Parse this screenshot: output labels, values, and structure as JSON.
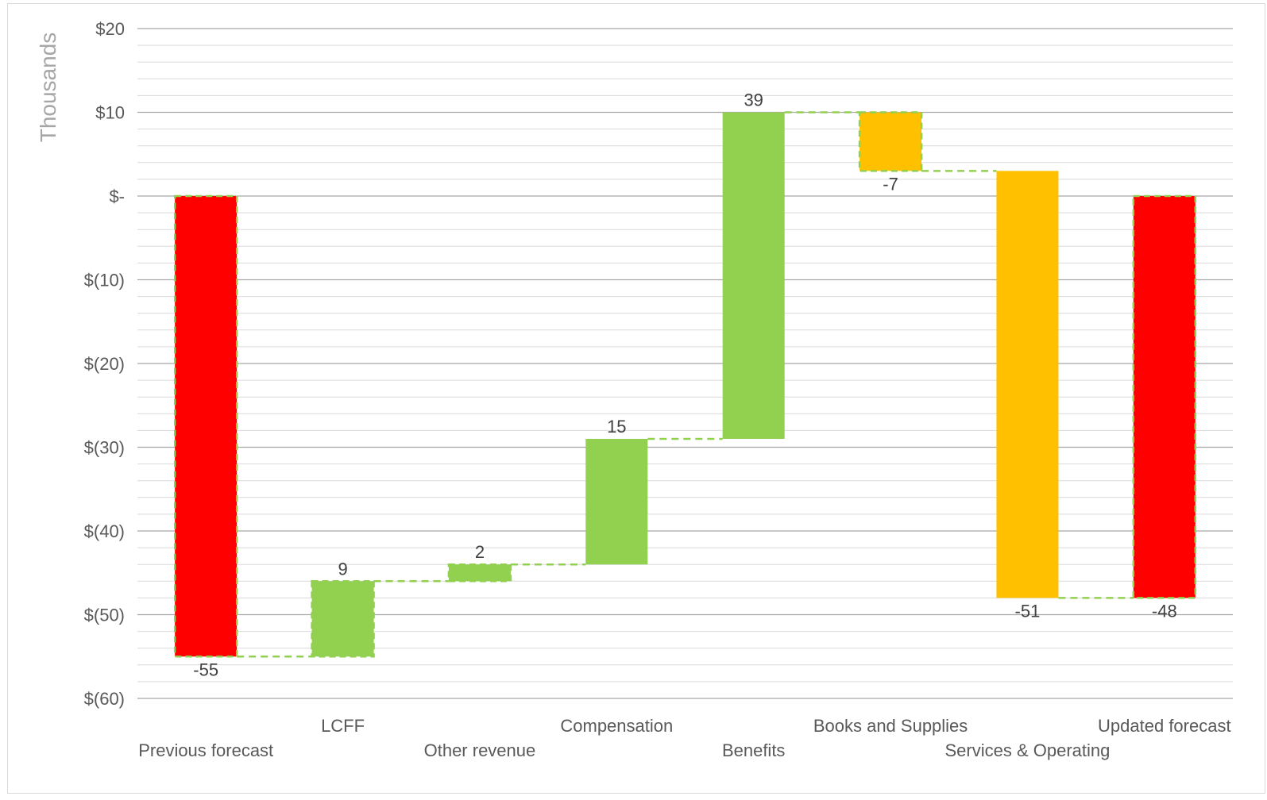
{
  "chart_data": {
    "type": "bar",
    "subtype": "waterfall",
    "ylabel": "Thousands",
    "ylim": [
      -60,
      20
    ],
    "yticks": [
      20,
      10,
      0,
      -10,
      -20,
      -30,
      -40,
      -50,
      -60
    ],
    "ytick_labels": [
      "$20",
      "$10",
      "$-",
      "$(10)",
      "$(20)",
      "$(30)",
      "$(40)",
      "$(50)",
      "$(60)"
    ],
    "grid": true,
    "legend": "none",
    "categories": [
      "Previous forecast",
      "LCFF",
      "Other revenue",
      "Compensation",
      "Benefits",
      "Books and Supplies",
      "Services & Operating",
      "Updated forecast"
    ],
    "values": [
      -55,
      9,
      2,
      15,
      39,
      -7,
      -51,
      -48
    ],
    "bar_kinds": [
      "total",
      "delta",
      "delta",
      "delta",
      "delta",
      "delta",
      "delta",
      "total"
    ],
    "data_labels": [
      "-55",
      "9",
      "2",
      "15",
      "39",
      "-7",
      "-51",
      "-48"
    ],
    "colors": {
      "total": "#ff0000",
      "increase": "#92d050",
      "decrease": "#ffc000",
      "connector": "#92d050",
      "grid_major": "#a6a6a6",
      "grid_minor": "#d9d9d9",
      "text": "#595959"
    }
  }
}
